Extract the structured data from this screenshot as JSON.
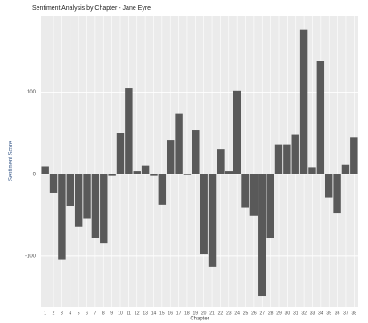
{
  "chart_data": {
    "type": "bar",
    "title": "Sentiment Analysis by Chapter - Jane Eyre",
    "x_label": "Chapter",
    "y_label": "Sentiment Score",
    "categories": [
      "1",
      "2",
      "3",
      "4",
      "5",
      "6",
      "7",
      "8",
      "9",
      "10",
      "11",
      "12",
      "13",
      "14",
      "15",
      "16",
      "17",
      "18",
      "19",
      "20",
      "21",
      "22",
      "23",
      "24",
      "25",
      "26",
      "27",
      "28",
      "29",
      "30",
      "31",
      "32",
      "33",
      "34",
      "35",
      "36",
      "37",
      "38"
    ],
    "values": [
      9,
      -23,
      -104,
      -39,
      -64,
      -54,
      -78,
      -84,
      -2,
      50,
      105,
      4,
      11,
      -2,
      -37,
      42,
      74,
      -1,
      54,
      -98,
      -113,
      30,
      4,
      102,
      -41,
      -51,
      -149,
      -78,
      36,
      36,
      48,
      176,
      8,
      138,
      -28,
      -47,
      12,
      45
    ],
    "color": "#595959",
    "ylim": [
      -162,
      193
    ],
    "yticks": [
      -100,
      0,
      100
    ],
    "grid": true
  }
}
